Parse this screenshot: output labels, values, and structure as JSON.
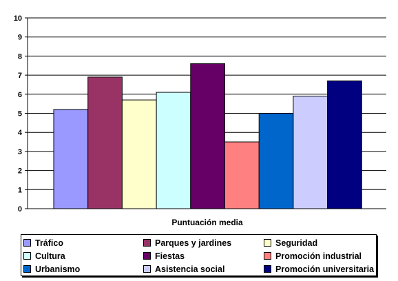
{
  "chart_data": {
    "type": "bar",
    "categories": [
      "Puntuación media"
    ],
    "series": [
      {
        "name": "Tráfico",
        "values": [
          5.2
        ],
        "color": "#9999ff"
      },
      {
        "name": "Parques y jardines",
        "values": [
          6.9
        ],
        "color": "#993366"
      },
      {
        "name": "Seguridad",
        "values": [
          5.7
        ],
        "color": "#ffffcc"
      },
      {
        "name": "Cultura",
        "values": [
          6.1
        ],
        "color": "#ccffff"
      },
      {
        "name": "Fiestas",
        "values": [
          7.6
        ],
        "color": "#660066"
      },
      {
        "name": "Promoción industrial",
        "values": [
          3.5
        ],
        "color": "#ff8080"
      },
      {
        "name": "Urbanismo",
        "values": [
          5.0
        ],
        "color": "#0066cc"
      },
      {
        "name": "Asistencia social",
        "values": [
          5.9
        ],
        "color": "#ccccff"
      },
      {
        "name": "Promoción universitaria",
        "values": [
          6.7
        ],
        "color": "#000080"
      }
    ],
    "ylim": [
      0,
      10
    ],
    "yticks": [
      "0",
      "1",
      "2",
      "3",
      "4",
      "5",
      "6",
      "7",
      "8",
      "9",
      "10"
    ],
    "grid": true,
    "legend": "bottom"
  }
}
